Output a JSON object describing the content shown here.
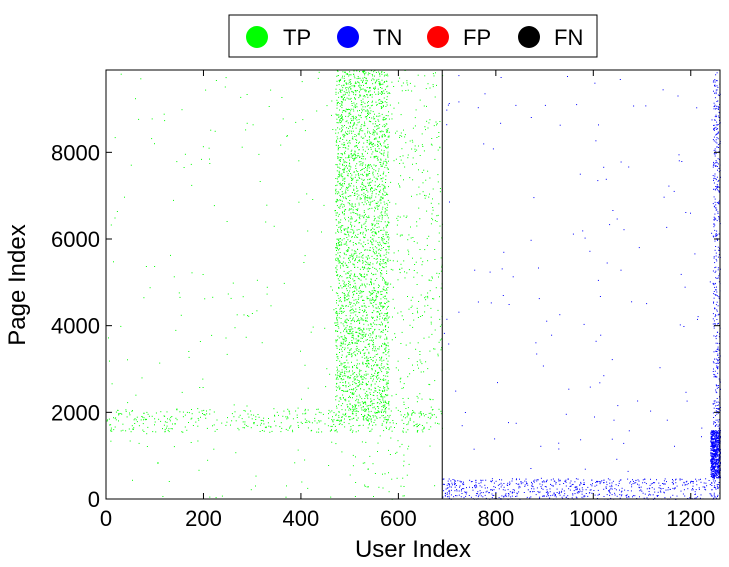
{
  "chart_data": {
    "type": "scatter",
    "xlabel": "User Index",
    "ylabel": "Page Index",
    "xlim": [
      0,
      1260
    ],
    "ylim": [
      0,
      9900
    ],
    "xticks": [
      0,
      200,
      400,
      600,
      800,
      1000,
      1200
    ],
    "yticks": [
      0,
      2000,
      4000,
      6000,
      8000
    ],
    "divider_x": 690,
    "grid": false,
    "legend_position": "top-center",
    "legend": [
      {
        "label": "TP",
        "color": "#00ff00"
      },
      {
        "label": "TN",
        "color": "#0000ff"
      },
      {
        "label": "FP",
        "color": "#ff0000"
      },
      {
        "label": "FN",
        "color": "#000000"
      }
    ],
    "series": [
      {
        "name": "TP",
        "color": "#00ff00",
        "regions": [
          {
            "x": [
              0,
              690
            ],
            "y": [
              0,
              9900
            ],
            "density": 0.0006
          },
          {
            "x": [
              0,
              690
            ],
            "y": [
              1550,
              2100
            ],
            "density": 0.018
          },
          {
            "x": [
              470,
              580
            ],
            "y": [
              1800,
              9900
            ],
            "density": 0.05
          },
          {
            "x": [
              580,
              690
            ],
            "y": [
              1800,
              9900
            ],
            "density": 0.006
          },
          {
            "x": [
              500,
              620
            ],
            "y": [
              0,
              1500
            ],
            "density": 0.004
          }
        ]
      },
      {
        "name": "TN",
        "color": "#0000ff",
        "regions": [
          {
            "x": [
              690,
              1260
            ],
            "y": [
              0,
              480
            ],
            "density": 0.04
          },
          {
            "x": [
              690,
              1260
            ],
            "y": [
              480,
              9900
            ],
            "density": 0.0004
          },
          {
            "x": [
              1240,
              1260
            ],
            "y": [
              500,
              1600
            ],
            "density": 0.5
          },
          {
            "x": [
              1245,
              1260
            ],
            "y": [
              1600,
              9900
            ],
            "density": 0.05
          }
        ]
      }
    ]
  }
}
